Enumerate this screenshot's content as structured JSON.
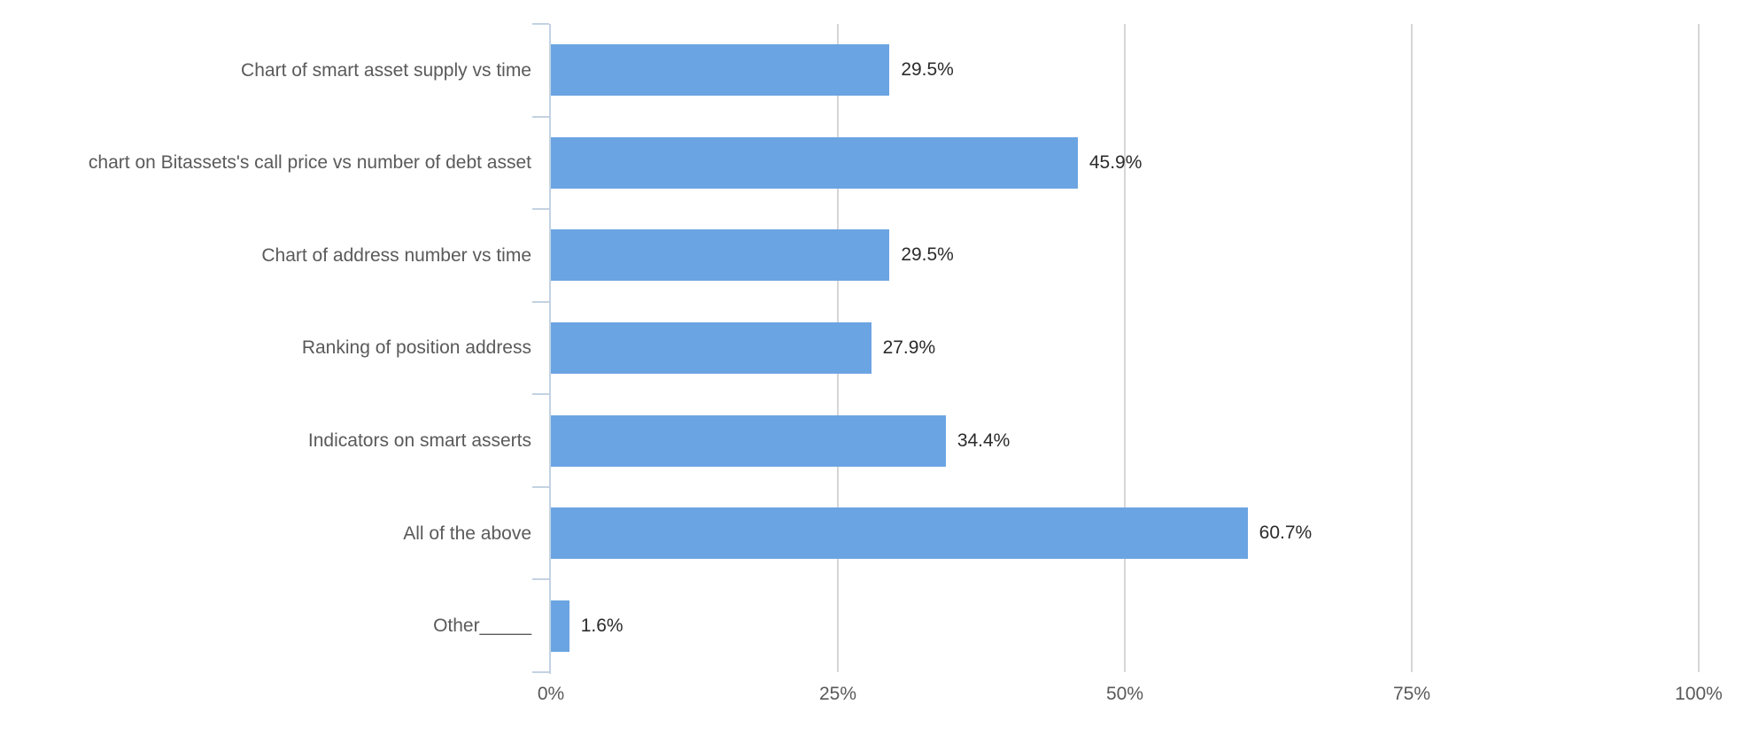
{
  "chart_data": {
    "type": "bar",
    "orientation": "horizontal",
    "title": "",
    "xlabel": "",
    "ylabel": "",
    "categories": [
      "Chart of smart asset supply vs time",
      "chart on Bitassets's call price vs number of debt asset",
      "Chart of address number vs time",
      "Ranking of position address",
      "Indicators on smart asserts",
      "All of the above",
      "Other_____"
    ],
    "values": [
      29.5,
      45.9,
      29.5,
      27.9,
      34.4,
      60.7,
      1.6
    ],
    "value_labels": [
      "29.5%",
      "45.9%",
      "29.5%",
      "27.9%",
      "34.4%",
      "60.7%",
      "1.6%"
    ],
    "xlim": [
      0,
      100
    ],
    "x_tick_values": [
      0,
      25,
      50,
      75,
      100
    ],
    "x_tick_labels": [
      "0%",
      "25%",
      "50%",
      "75%",
      "100%"
    ],
    "grid": "vertical-gridlines-on",
    "legend": "none",
    "colors": {
      "bar": "#6BA4E2",
      "gridline": "#D6D6D6",
      "axis": "#C3D2E2",
      "category_label": "#5A5A5A",
      "value_label": "#2B2B2B",
      "tick_label": "#595959",
      "background": "#FFFFFF"
    }
  }
}
